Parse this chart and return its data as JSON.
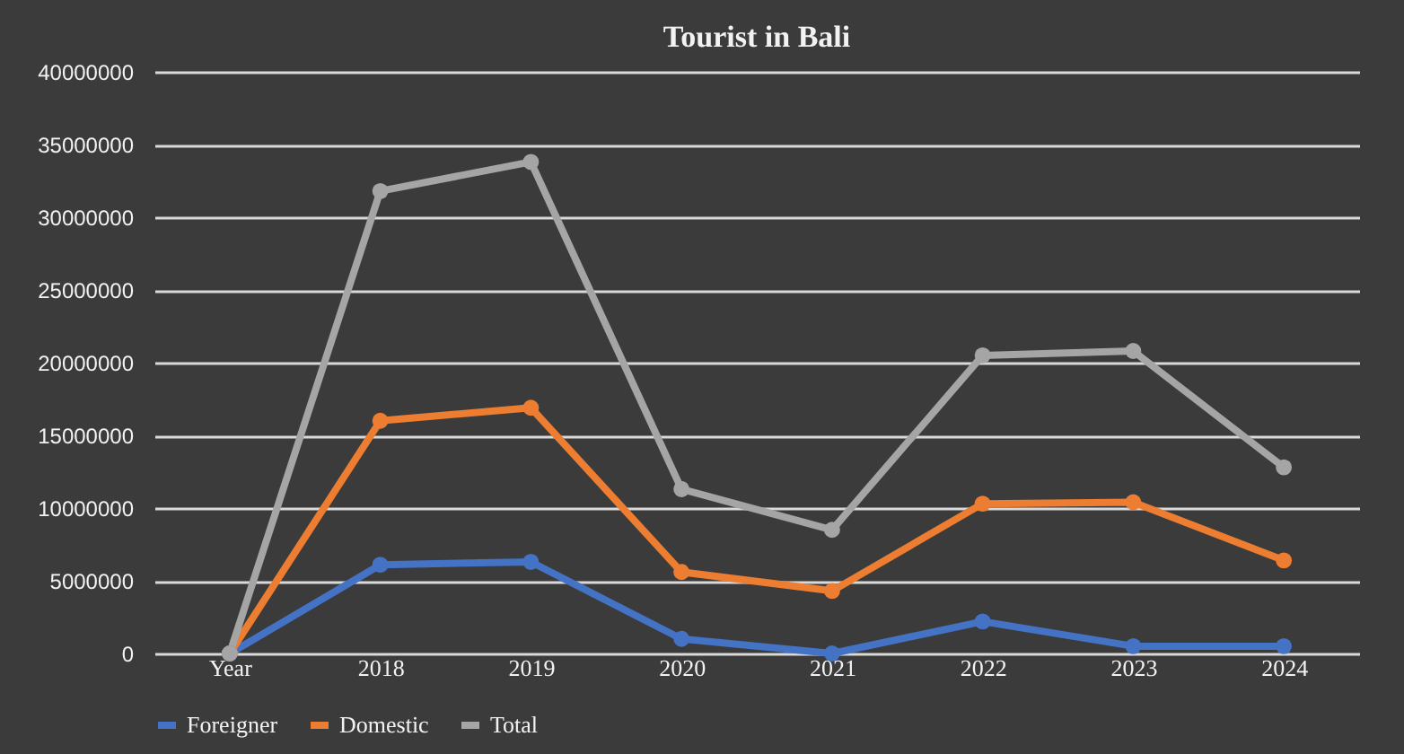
{
  "chart_data": {
    "type": "line",
    "title": "Tourist in Bali",
    "categories": [
      "Year",
      "2018",
      "2019",
      "2020",
      "2021",
      "2022",
      "2023",
      "2024"
    ],
    "series": [
      {
        "name": "Foreigner",
        "color": "#4472c4",
        "values": [
          0,
          6100000,
          6300000,
          1000000,
          0,
          2200000,
          500000,
          500000
        ]
      },
      {
        "name": "Domestic",
        "color": "#ed7d31",
        "values": [
          0,
          16000000,
          16900000,
          5600000,
          4300000,
          10300000,
          10400000,
          6400000
        ]
      },
      {
        "name": "Total",
        "color": "#a5a5a5",
        "values": [
          0,
          31800000,
          33800000,
          11300000,
          8500000,
          20500000,
          20800000,
          12800000
        ]
      }
    ],
    "ylim": [
      0,
      40000000
    ],
    "yticks": [
      0,
      5000000,
      10000000,
      15000000,
      20000000,
      25000000,
      30000000,
      35000000,
      40000000
    ],
    "grid": "y",
    "legend": "bottom",
    "marker": "circle",
    "line_style": "solid"
  }
}
